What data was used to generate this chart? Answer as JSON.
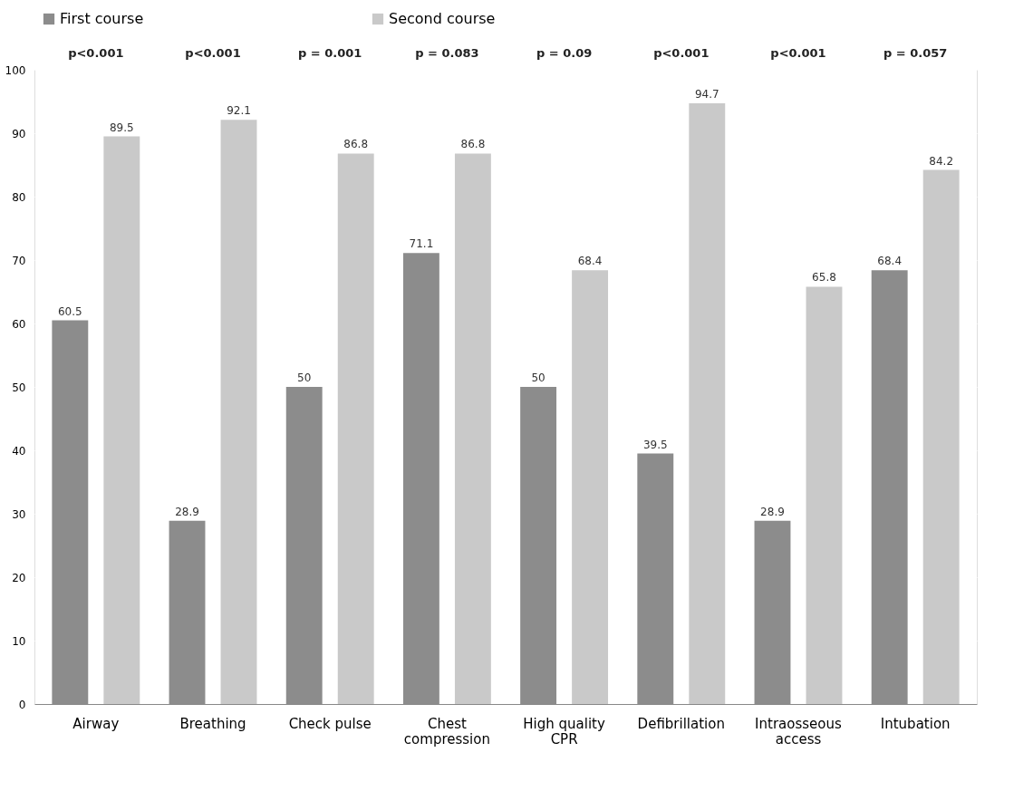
{
  "chart_data": {
    "type": "bar",
    "categories": [
      "Airway",
      "Breathing",
      "Check pulse",
      "Chest compression",
      "High quality CPR",
      "Defibrillation",
      "Intraosseous access",
      "Intubation"
    ],
    "series": [
      {
        "name": "First course",
        "color": "#8c8c8c",
        "values": [
          60.5,
          28.9,
          50,
          71.1,
          50,
          39.5,
          28.9,
          68.4
        ]
      },
      {
        "name": "Second course",
        "color": "#c9c9c9",
        "values": [
          89.5,
          92.1,
          86.8,
          86.8,
          68.4,
          94.7,
          65.8,
          84.2
        ]
      }
    ],
    "ylim": [
      0,
      100
    ],
    "yticks": [
      0,
      10,
      20,
      30,
      40,
      50,
      60,
      70,
      80,
      90,
      100
    ],
    "grid": "y",
    "legend": "top",
    "data_labels": true,
    "annotations": [
      "p<0.001",
      "p<0.001",
      "p = 0.001",
      "p = 0.083",
      "p = 0.09",
      "p<0.001",
      "p<0.001",
      "p = 0.057"
    ]
  }
}
